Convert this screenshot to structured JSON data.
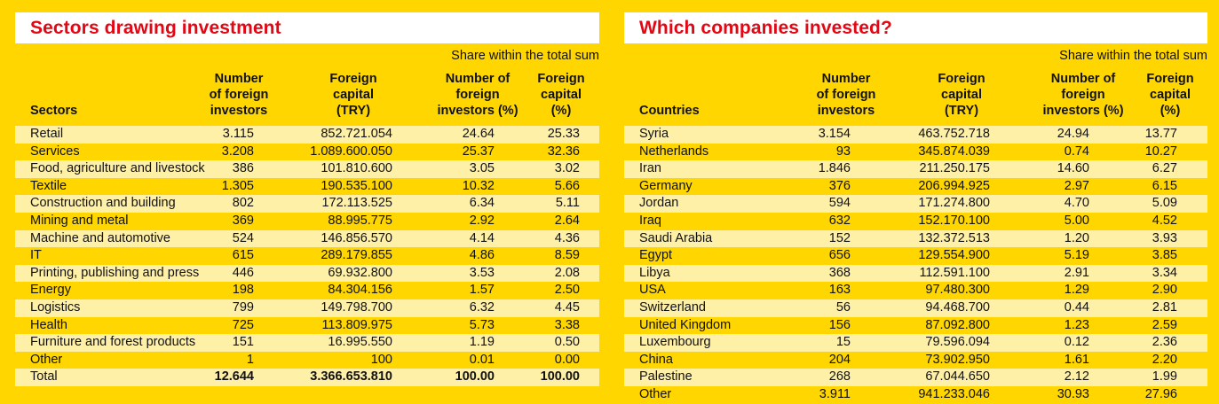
{
  "left": {
    "title": "Sectors drawing investment",
    "share_note": "Share within the total sum",
    "headers": {
      "col1": "Sectors",
      "col2": "Number\nof foreign\ninvestors",
      "col3": "Foreign\ncapital\n(TRY)",
      "col4": "Number of\nforeign\ninvestors (%)",
      "col5": "Foreign\ncapital\n(%)"
    },
    "rows": [
      [
        "Retail",
        "3.115",
        "852.721.054",
        "24.64",
        "25.33"
      ],
      [
        "Services",
        "3.208",
        "1.089.600.050",
        "25.37",
        "32.36"
      ],
      [
        "Food, agriculture and livestock",
        "386",
        "101.810.600",
        "3.05",
        "3.02"
      ],
      [
        "Textile",
        "1.305",
        "190.535.100",
        "10.32",
        "5.66"
      ],
      [
        "Construction and building",
        "802",
        "172.113.525",
        "6.34",
        "5.11"
      ],
      [
        "Mining and metal",
        "369",
        "88.995.775",
        "2.92",
        "2.64"
      ],
      [
        "Machine and automotive",
        "524",
        "146.856.570",
        "4.14",
        "4.36"
      ],
      [
        "IT",
        "615",
        "289.179.855",
        "4.86",
        "8.59"
      ],
      [
        "Printing, publishing and press",
        "446",
        "69.932.800",
        "3.53",
        "2.08"
      ],
      [
        "Energy",
        "198",
        "84.304.156",
        "1.57",
        "2.50"
      ],
      [
        "Logistics",
        "799",
        "149.798.700",
        "6.32",
        "4.45"
      ],
      [
        "Health",
        "725",
        "113.809.975",
        "5.73",
        "3.38"
      ],
      [
        "Furniture and forest products",
        "151",
        "16.995.550",
        "1.19",
        "0.50"
      ],
      [
        "Other",
        "1",
        "100",
        "0.01",
        "0.00"
      ]
    ],
    "total": [
      "Total",
      "12.644",
      "3.366.653.810",
      "100.00",
      "100.00"
    ]
  },
  "right": {
    "title": "Which companies invested?",
    "share_note": "Share within the total sum",
    "headers": {
      "col1": "Countries",
      "col2": "Number\nof foreign\ninvestors",
      "col3": "Foreign\ncapital\n(TRY)",
      "col4": "Number of\nforeign\ninvestors (%)",
      "col5": "Foreign\ncapital\n(%)"
    },
    "rows": [
      [
        "Syria",
        "3.154",
        "463.752.718",
        "24.94",
        "13.77"
      ],
      [
        "Netherlands",
        "93",
        "345.874.039",
        "0.74",
        "10.27"
      ],
      [
        "Iran",
        "1.846",
        "211.250.175",
        "14.60",
        "6.27"
      ],
      [
        "Germany",
        "376",
        "206.994.925",
        "2.97",
        "6.15"
      ],
      [
        "Jordan",
        "594",
        "171.274.800",
        "4.70",
        "5.09"
      ],
      [
        "Iraq",
        "632",
        "152.170.100",
        "5.00",
        "4.52"
      ],
      [
        "Saudi Arabia",
        "152",
        "132.372.513",
        "1.20",
        "3.93"
      ],
      [
        "Egypt",
        "656",
        "129.554.900",
        "5.19",
        "3.85"
      ],
      [
        "Libya",
        "368",
        "112.591.100",
        "2.91",
        "3.34"
      ],
      [
        "USA",
        "163",
        "97.480.300",
        "1.29",
        "2.90"
      ],
      [
        "Switzerland",
        "56",
        "94.468.700",
        "0.44",
        "2.81"
      ],
      [
        "United Kingdom",
        "156",
        "87.092.800",
        "1.23",
        "2.59"
      ],
      [
        "Luxembourg",
        "15",
        "79.596.094",
        "0.12",
        "2.36"
      ],
      [
        "China",
        "204",
        "73.902.950",
        "1.61",
        "2.20"
      ],
      [
        "Palestine",
        "268",
        "67.044.650",
        "2.12",
        "1.99"
      ],
      [
        "Other",
        "3.911",
        "941.233.046",
        "30.93",
        "27.96"
      ]
    ]
  }
}
